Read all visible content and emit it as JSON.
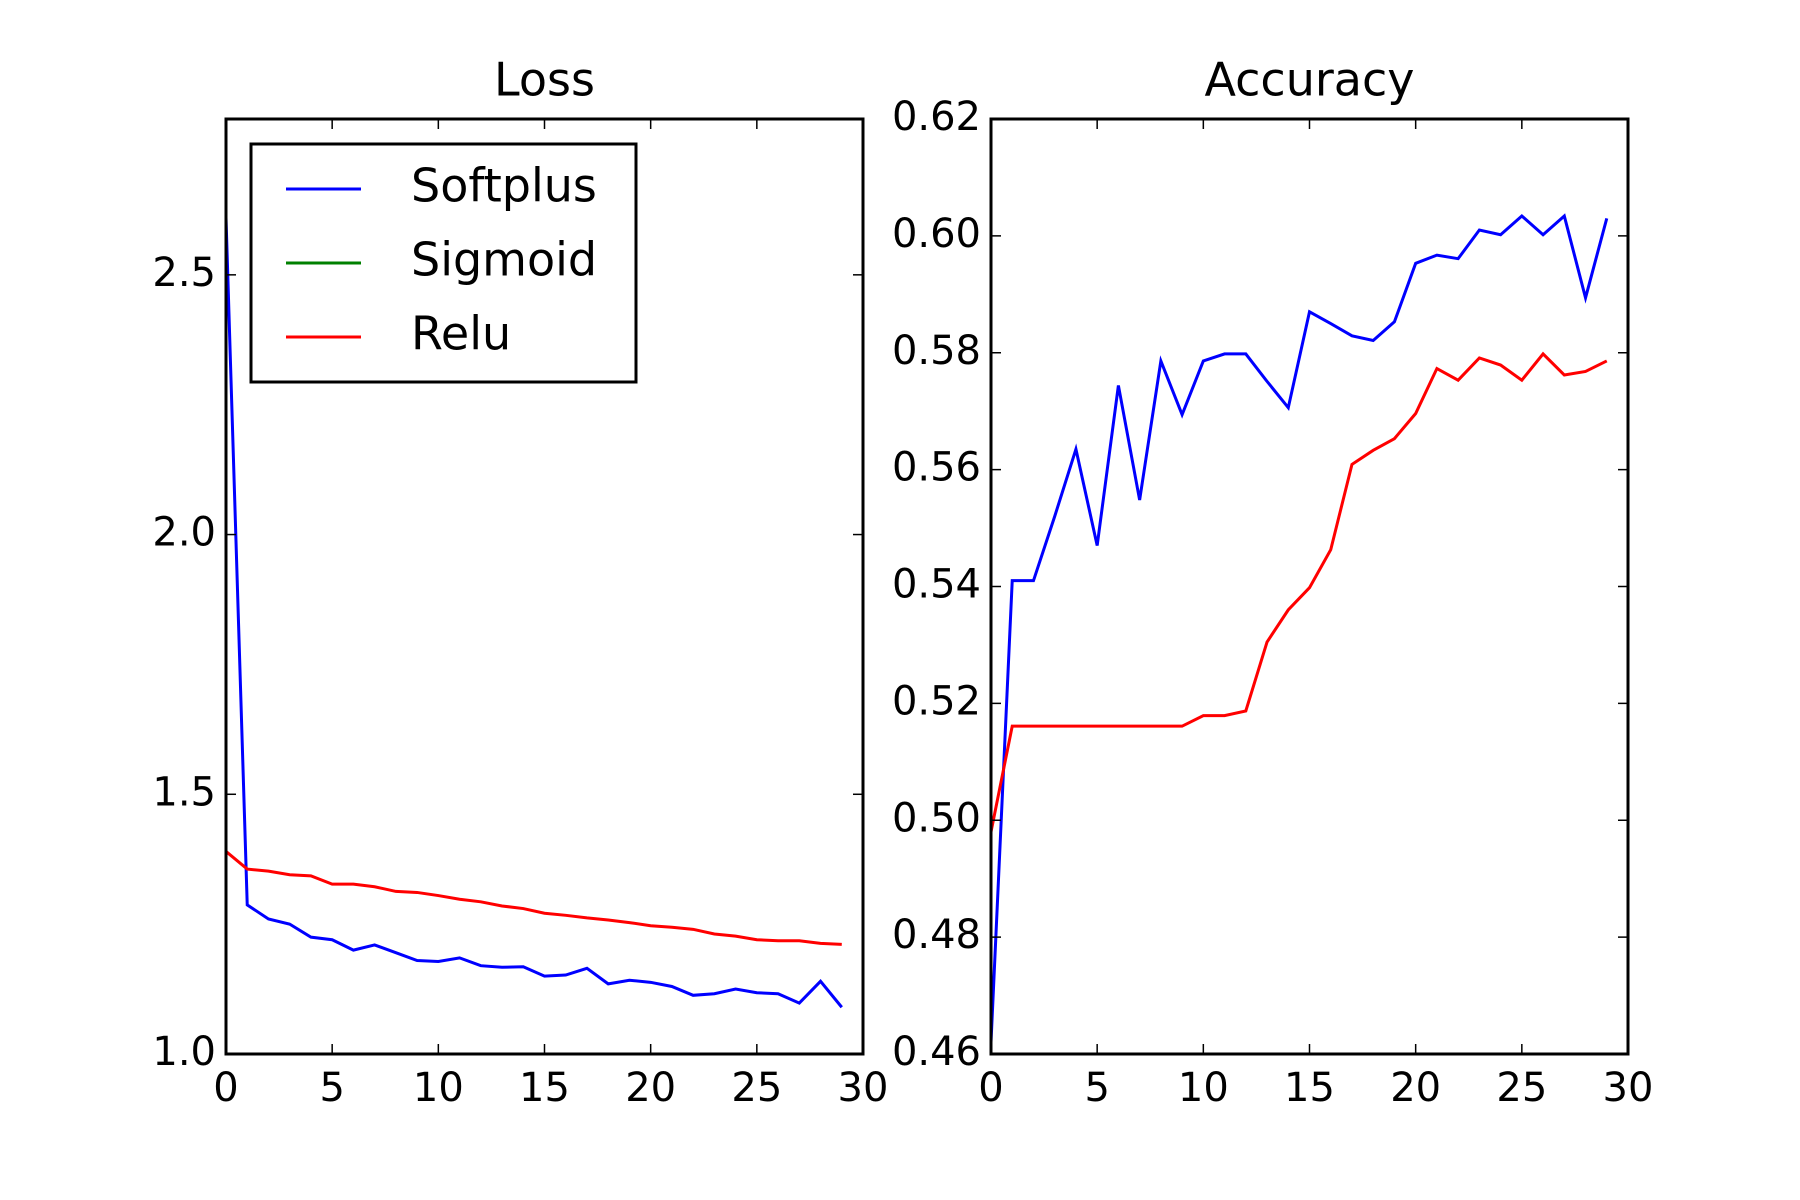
{
  "chart_data": [
    {
      "type": "line",
      "title": "Loss",
      "x": [
        0,
        1,
        2,
        3,
        4,
        5,
        6,
        7,
        8,
        9,
        10,
        11,
        12,
        13,
        14,
        15,
        16,
        17,
        18,
        19,
        20,
        21,
        22,
        23,
        24,
        25,
        26,
        27,
        28,
        29
      ],
      "series": [
        {
          "name": "Softplus",
          "color": "#0000ff",
          "values": [
            2.61,
            1.287,
            1.26,
            1.25,
            1.225,
            1.22,
            1.2,
            1.21,
            1.195,
            1.18,
            1.178,
            1.185,
            1.17,
            1.167,
            1.168,
            1.15,
            1.152,
            1.165,
            1.135,
            1.142,
            1.138,
            1.13,
            1.113,
            1.116,
            1.125,
            1.118,
            1.116,
            1.098,
            1.14,
            1.09
          ]
        },
        {
          "name": "Sigmoid",
          "color": "#008000",
          "values": [
            null,
            null,
            null,
            null,
            null,
            null,
            null,
            null,
            null,
            null,
            null,
            null,
            null,
            null,
            null,
            null,
            null,
            null,
            null,
            null,
            null,
            null,
            null,
            null,
            null,
            null,
            null,
            null,
            null,
            null
          ]
        },
        {
          "name": "Relu",
          "color": "#ff0000",
          "values": [
            1.39,
            1.356,
            1.352,
            1.345,
            1.343,
            1.327,
            1.327,
            1.322,
            1.313,
            1.311,
            1.305,
            1.298,
            1.293,
            1.285,
            1.28,
            1.271,
            1.267,
            1.262,
            1.258,
            1.253,
            1.247,
            1.244,
            1.24,
            1.231,
            1.227,
            1.22,
            1.218,
            1.218,
            1.213,
            1.211
          ]
        }
      ],
      "xlim": [
        0,
        30
      ],
      "xticks": [
        0,
        5,
        10,
        15,
        20,
        25,
        30
      ],
      "ylim": [
        1.0,
        2.8
      ],
      "yticks": [
        {
          "value": 1.0,
          "label": "1.0"
        },
        1.5,
        {
          "value": 2.0,
          "label": "2.0"
        },
        2.5
      ],
      "legend": "upper left"
    },
    {
      "type": "line",
      "title": "Accuracy",
      "x": [
        0,
        1,
        2,
        3,
        4,
        5,
        6,
        7,
        8,
        9,
        10,
        11,
        12,
        13,
        14,
        15,
        16,
        17,
        18,
        19,
        20,
        21,
        22,
        23,
        24,
        25,
        26,
        27,
        28,
        29
      ],
      "series": [
        {
          "color": "#0000ff",
          "values": [
            0.462,
            0.541,
            0.541,
            0.552,
            0.5635,
            0.547,
            0.5744,
            0.5548,
            0.5786,
            0.5694,
            0.5786,
            0.5798,
            0.5798,
            0.5751,
            0.5706,
            0.587,
            0.585,
            0.5829,
            0.5821,
            0.5853,
            0.5953,
            0.5967,
            0.5961,
            0.601,
            0.6002,
            0.6034,
            0.6002,
            0.6034,
            0.5894,
            0.603
          ]
        },
        {
          "color": "#ff0000",
          "values": [
            0.498,
            0.5161,
            0.5161,
            0.5161,
            0.5161,
            0.5161,
            0.5161,
            0.5161,
            0.5161,
            0.5161,
            0.5179,
            0.5179,
            0.5187,
            0.5305,
            0.536,
            0.5398,
            0.5463,
            0.5609,
            0.5633,
            0.5653,
            0.5696,
            0.5773,
            0.5753,
            0.5791,
            0.5779,
            0.5753,
            0.5798,
            0.5762,
            0.5768,
            0.5786
          ]
        }
      ],
      "xlim": [
        0,
        30
      ],
      "xticks": [
        0,
        5,
        10,
        15,
        20,
        25,
        30
      ],
      "ylim": [
        0.46,
        0.62
      ],
      "yticks": [
        0.46,
        0.48,
        {
          "value": 0.5,
          "label": "0.50"
        },
        0.52,
        0.54,
        0.56,
        0.58,
        {
          "value": 0.6,
          "label": "0.60"
        },
        0.62
      ]
    }
  ]
}
